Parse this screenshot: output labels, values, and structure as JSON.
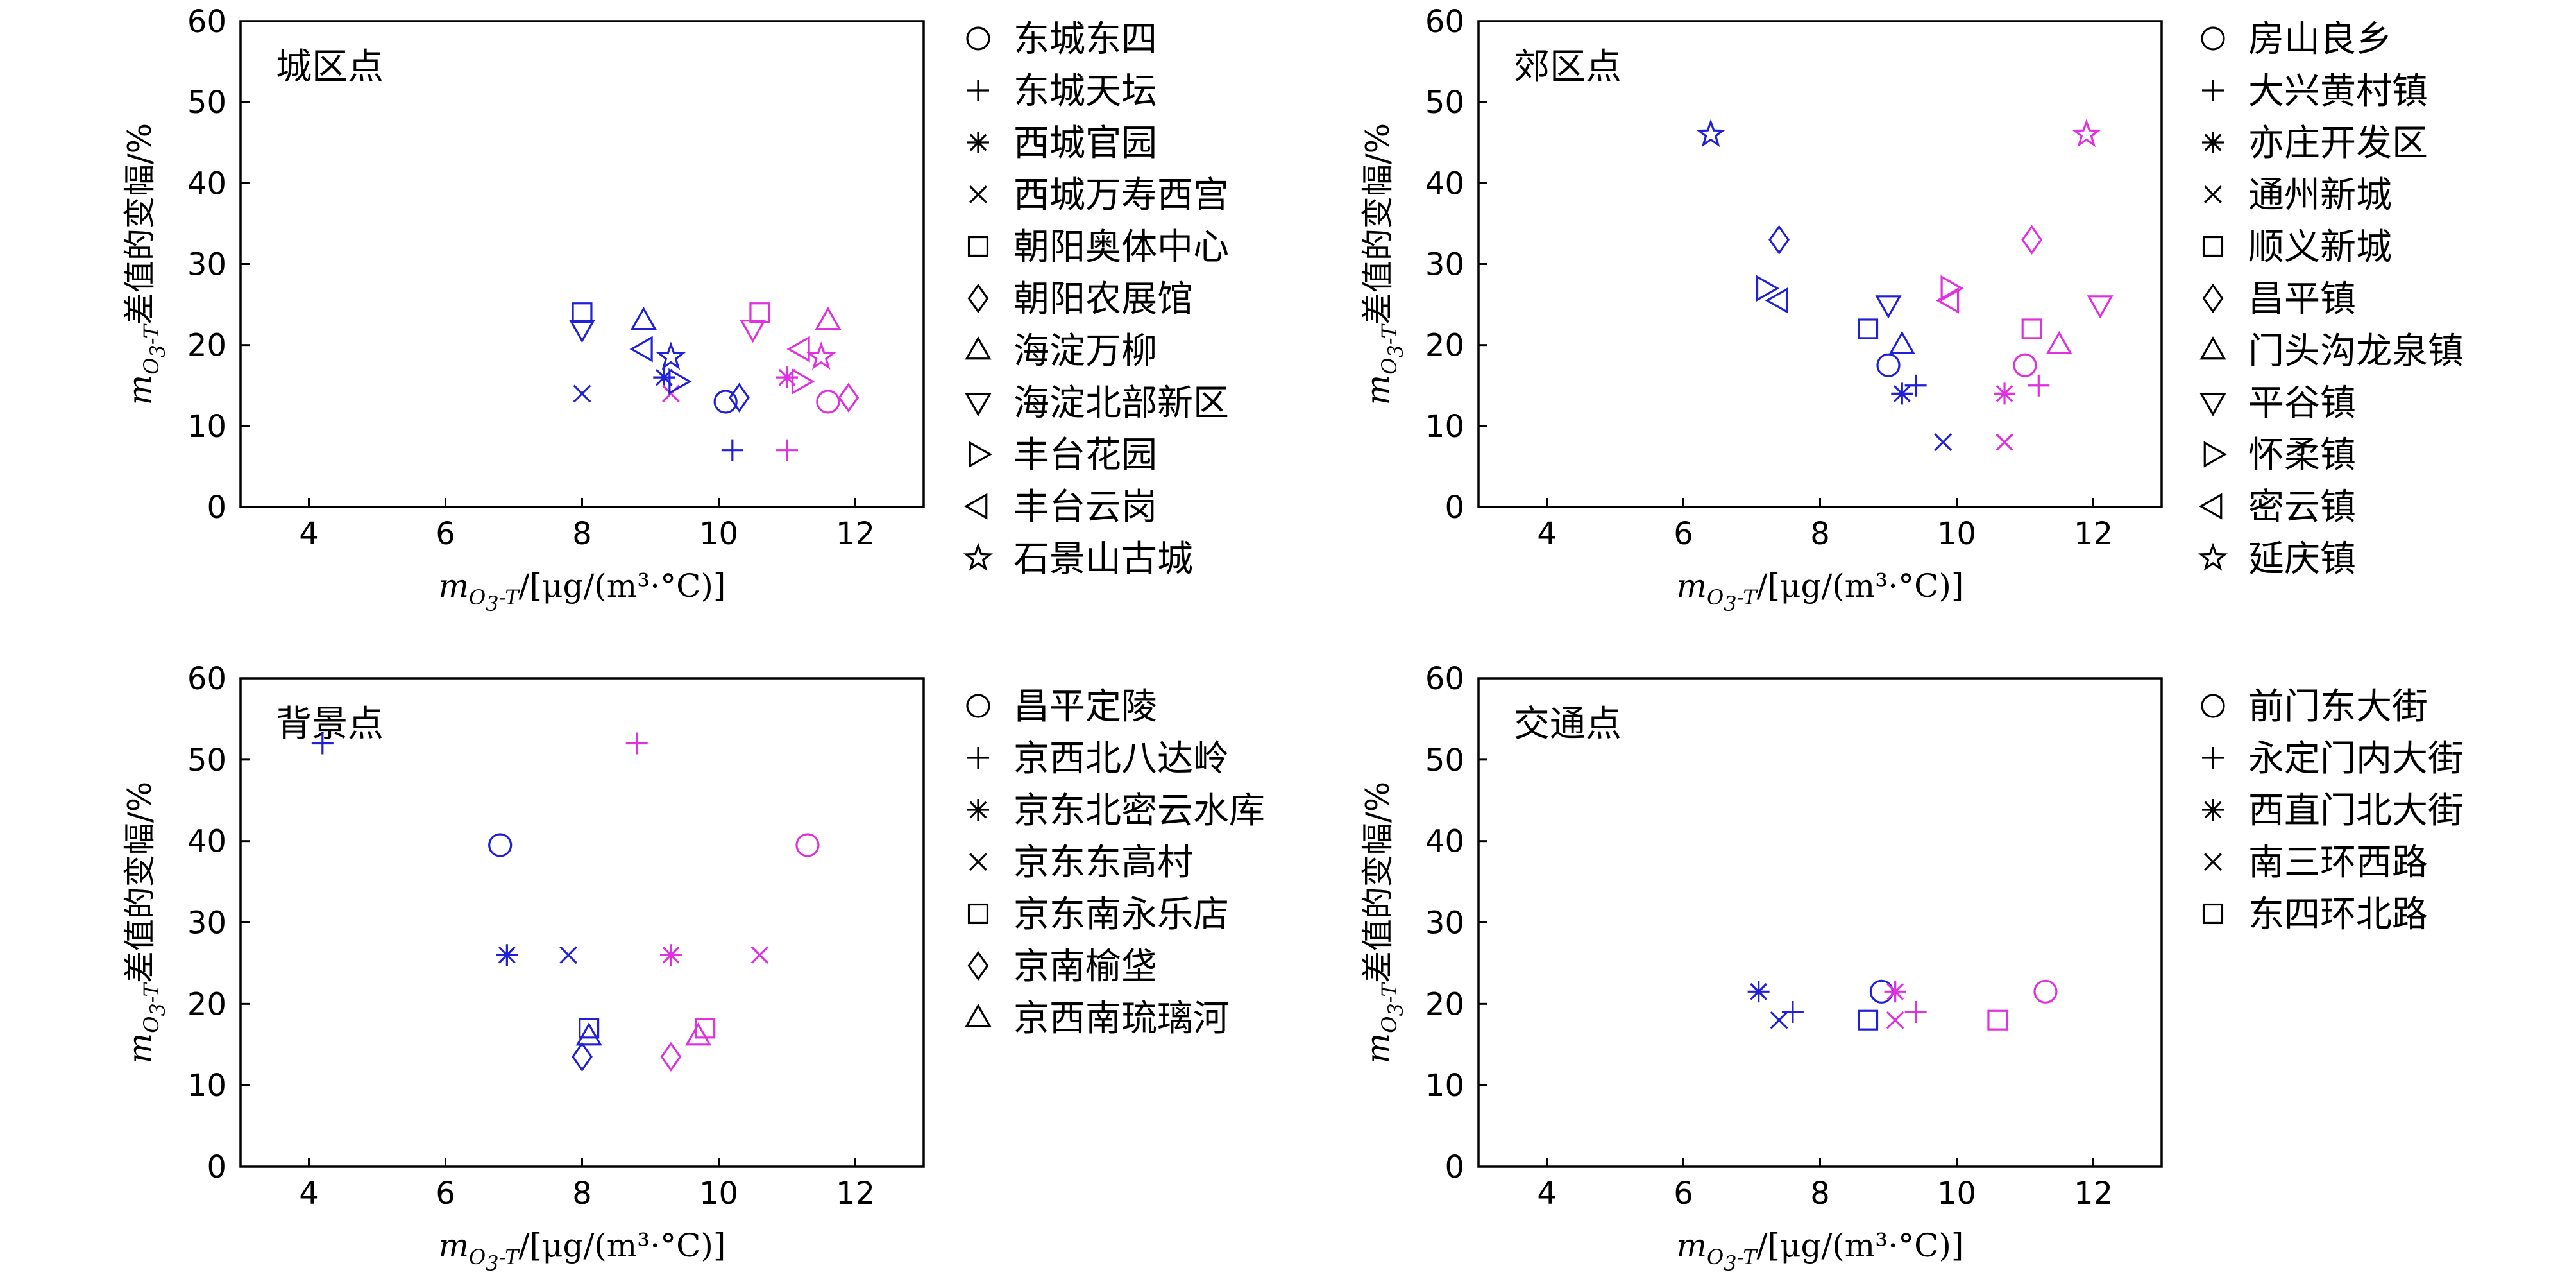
{
  "axis_text": {
    "var_m": "m",
    "sub_o": "O",
    "sub_3": "3",
    "sub_t": "-T",
    "x_unit": "/[μg/(m³·°C)]",
    "y_suffix": "差值的变幅/%"
  },
  "series_colors": {
    "blue": "#2020d8",
    "magenta": "#e030e0"
  },
  "chart_data": [
    {
      "type": "scatter",
      "title": "城区点",
      "xlim": [
        3,
        13
      ],
      "ylim": [
        0,
        60
      ],
      "xticks": [
        4,
        6,
        8,
        10,
        12
      ],
      "yticks": [
        0,
        10,
        20,
        30,
        40,
        50,
        60
      ],
      "legend_position": "right",
      "series": [
        {
          "name": "东城东四",
          "marker": "circle",
          "points": [
            {
              "x": 10.1,
              "y": 13,
              "color": "blue"
            },
            {
              "x": 11.6,
              "y": 13,
              "color": "magenta"
            }
          ]
        },
        {
          "name": "东城天坛",
          "marker": "plus",
          "points": [
            {
              "x": 10.2,
              "y": 7,
              "color": "blue"
            },
            {
              "x": 11.0,
              "y": 7,
              "color": "magenta"
            }
          ]
        },
        {
          "name": "西城官园",
          "marker": "asterisk",
          "points": [
            {
              "x": 9.2,
              "y": 16,
              "color": "blue"
            },
            {
              "x": 11.0,
              "y": 16,
              "color": "magenta"
            }
          ]
        },
        {
          "name": "西城万寿西宫",
          "marker": "x",
          "points": [
            {
              "x": 8.0,
              "y": 14,
              "color": "blue"
            },
            {
              "x": 9.3,
              "y": 14,
              "color": "magenta"
            }
          ]
        },
        {
          "name": "朝阳奥体中心",
          "marker": "square",
          "points": [
            {
              "x": 8.0,
              "y": 24,
              "color": "blue"
            },
            {
              "x": 10.6,
              "y": 24,
              "color": "magenta"
            }
          ]
        },
        {
          "name": "朝阳农展馆",
          "marker": "diamond",
          "points": [
            {
              "x": 10.3,
              "y": 13.5,
              "color": "blue"
            },
            {
              "x": 11.9,
              "y": 13.5,
              "color": "magenta"
            }
          ]
        },
        {
          "name": "海淀万柳",
          "marker": "triangle-up",
          "points": [
            {
              "x": 8.9,
              "y": 23,
              "color": "blue"
            },
            {
              "x": 11.6,
              "y": 23,
              "color": "magenta"
            }
          ]
        },
        {
          "name": "海淀北部新区",
          "marker": "triangle-down",
          "points": [
            {
              "x": 8.0,
              "y": 22,
              "color": "blue"
            },
            {
              "x": 10.5,
              "y": 22,
              "color": "magenta"
            }
          ]
        },
        {
          "name": "丰台花园",
          "marker": "triangle-right",
          "points": [
            {
              "x": 9.4,
              "y": 15.5,
              "color": "blue"
            },
            {
              "x": 11.2,
              "y": 15.5,
              "color": "magenta"
            }
          ]
        },
        {
          "name": "丰台云岗",
          "marker": "triangle-left",
          "points": [
            {
              "x": 8.9,
              "y": 19.5,
              "color": "blue"
            },
            {
              "x": 11.2,
              "y": 19.5,
              "color": "magenta"
            }
          ]
        },
        {
          "name": "石景山古城",
          "marker": "star",
          "points": [
            {
              "x": 9.3,
              "y": 18.5,
              "color": "blue"
            },
            {
              "x": 11.5,
              "y": 18.5,
              "color": "magenta"
            }
          ]
        }
      ]
    },
    {
      "type": "scatter",
      "title": "郊区点",
      "xlim": [
        3,
        13
      ],
      "ylim": [
        0,
        60
      ],
      "xticks": [
        4,
        6,
        8,
        10,
        12
      ],
      "yticks": [
        0,
        10,
        20,
        30,
        40,
        50,
        60
      ],
      "legend_position": "right",
      "series": [
        {
          "name": "房山良乡",
          "marker": "circle",
          "points": [
            {
              "x": 9.0,
              "y": 17.5,
              "color": "blue"
            },
            {
              "x": 11.0,
              "y": 17.5,
              "color": "magenta"
            }
          ]
        },
        {
          "name": "大兴黄村镇",
          "marker": "plus",
          "points": [
            {
              "x": 9.4,
              "y": 15,
              "color": "blue"
            },
            {
              "x": 11.2,
              "y": 15,
              "color": "magenta"
            }
          ]
        },
        {
          "name": "亦庄开发区",
          "marker": "asterisk",
          "points": [
            {
              "x": 9.2,
              "y": 14,
              "color": "blue"
            },
            {
              "x": 10.7,
              "y": 14,
              "color": "magenta"
            }
          ]
        },
        {
          "name": "通州新城",
          "marker": "x",
          "points": [
            {
              "x": 9.8,
              "y": 8,
              "color": "blue"
            },
            {
              "x": 10.7,
              "y": 8,
              "color": "magenta"
            }
          ]
        },
        {
          "name": "顺义新城",
          "marker": "square",
          "points": [
            {
              "x": 8.7,
              "y": 22,
              "color": "blue"
            },
            {
              "x": 11.1,
              "y": 22,
              "color": "magenta"
            }
          ]
        },
        {
          "name": "昌平镇",
          "marker": "diamond",
          "points": [
            {
              "x": 7.4,
              "y": 33,
              "color": "blue"
            },
            {
              "x": 11.1,
              "y": 33,
              "color": "magenta"
            }
          ]
        },
        {
          "name": "门头沟龙泉镇",
          "marker": "triangle-up",
          "points": [
            {
              "x": 9.2,
              "y": 20,
              "color": "blue"
            },
            {
              "x": 11.5,
              "y": 20,
              "color": "magenta"
            }
          ]
        },
        {
          "name": "平谷镇",
          "marker": "triangle-down",
          "points": [
            {
              "x": 9.0,
              "y": 25,
              "color": "blue"
            },
            {
              "x": 12.1,
              "y": 25,
              "color": "magenta"
            }
          ]
        },
        {
          "name": "怀柔镇",
          "marker": "triangle-right",
          "points": [
            {
              "x": 7.2,
              "y": 27,
              "color": "blue"
            },
            {
              "x": 9.9,
              "y": 27,
              "color": "magenta"
            }
          ]
        },
        {
          "name": "密云镇",
          "marker": "triangle-left",
          "points": [
            {
              "x": 7.4,
              "y": 25.5,
              "color": "blue"
            },
            {
              "x": 9.9,
              "y": 25.5,
              "color": "magenta"
            }
          ]
        },
        {
          "name": "延庆镇",
          "marker": "star",
          "points": [
            {
              "x": 6.4,
              "y": 46,
              "color": "blue"
            },
            {
              "x": 11.9,
              "y": 46,
              "color": "magenta"
            }
          ]
        }
      ]
    },
    {
      "type": "scatter",
      "title": "背景点",
      "xlim": [
        3,
        13
      ],
      "ylim": [
        0,
        60
      ],
      "xticks": [
        4,
        6,
        8,
        10,
        12
      ],
      "yticks": [
        0,
        10,
        20,
        30,
        40,
        50,
        60
      ],
      "legend_position": "right",
      "series": [
        {
          "name": "昌平定陵",
          "marker": "circle",
          "points": [
            {
              "x": 6.8,
              "y": 39.5,
              "color": "blue"
            },
            {
              "x": 11.3,
              "y": 39.5,
              "color": "magenta"
            }
          ]
        },
        {
          "name": "京西北八达岭",
          "marker": "plus",
          "points": [
            {
              "x": 4.2,
              "y": 52,
              "color": "blue"
            },
            {
              "x": 8.8,
              "y": 52,
              "color": "magenta"
            }
          ]
        },
        {
          "name": "京东北密云水库",
          "marker": "asterisk",
          "points": [
            {
              "x": 6.9,
              "y": 26,
              "color": "blue"
            },
            {
              "x": 9.3,
              "y": 26,
              "color": "magenta"
            }
          ]
        },
        {
          "name": "京东东高村",
          "marker": "x",
          "points": [
            {
              "x": 7.8,
              "y": 26,
              "color": "blue"
            },
            {
              "x": 10.6,
              "y": 26,
              "color": "magenta"
            }
          ]
        },
        {
          "name": "京东南永乐店",
          "marker": "square",
          "points": [
            {
              "x": 8.1,
              "y": 17,
              "color": "blue"
            },
            {
              "x": 9.8,
              "y": 17,
              "color": "magenta"
            }
          ]
        },
        {
          "name": "京南榆垡",
          "marker": "diamond",
          "points": [
            {
              "x": 8.0,
              "y": 13.5,
              "color": "blue"
            },
            {
              "x": 9.3,
              "y": 13.5,
              "color": "magenta"
            }
          ]
        },
        {
          "name": "京西南琉璃河",
          "marker": "triangle-up",
          "points": [
            {
              "x": 8.1,
              "y": 16,
              "color": "blue"
            },
            {
              "x": 9.7,
              "y": 16,
              "color": "magenta"
            }
          ]
        }
      ]
    },
    {
      "type": "scatter",
      "title": "交通点",
      "xlim": [
        3,
        13
      ],
      "ylim": [
        0,
        60
      ],
      "xticks": [
        4,
        6,
        8,
        10,
        12
      ],
      "yticks": [
        0,
        10,
        20,
        30,
        40,
        50,
        60
      ],
      "legend_position": "right",
      "series": [
        {
          "name": "前门东大街",
          "marker": "circle",
          "points": [
            {
              "x": 8.9,
              "y": 21.5,
              "color": "blue"
            },
            {
              "x": 11.3,
              "y": 21.5,
              "color": "magenta"
            }
          ]
        },
        {
          "name": "永定门内大街",
          "marker": "plus",
          "points": [
            {
              "x": 7.6,
              "y": 19,
              "color": "blue"
            },
            {
              "x": 9.4,
              "y": 19,
              "color": "magenta"
            }
          ]
        },
        {
          "name": "西直门北大街",
          "marker": "asterisk",
          "points": [
            {
              "x": 7.1,
              "y": 21.5,
              "color": "blue"
            },
            {
              "x": 9.1,
              "y": 21.5,
              "color": "magenta"
            }
          ]
        },
        {
          "name": "南三环西路",
          "marker": "x",
          "points": [
            {
              "x": 7.4,
              "y": 18,
              "color": "blue"
            },
            {
              "x": 9.1,
              "y": 18,
              "color": "magenta"
            }
          ]
        },
        {
          "name": "东四环北路",
          "marker": "square",
          "points": [
            {
              "x": 8.7,
              "y": 18,
              "color": "blue"
            },
            {
              "x": 10.6,
              "y": 18,
              "color": "magenta"
            }
          ]
        }
      ]
    }
  ]
}
